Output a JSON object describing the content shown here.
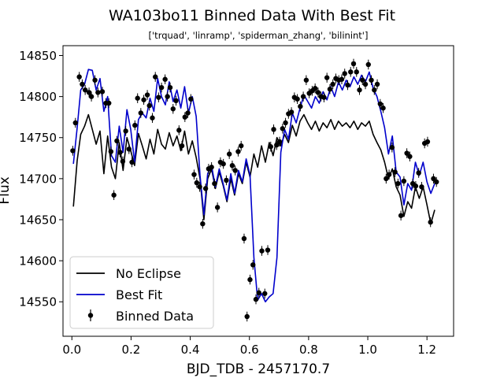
{
  "chart_data": {
    "type": "scatter",
    "title": "WA103bo11 Binned Data With Best Fit",
    "subtitle": "['trquad', 'linramp', 'spiderman_zhang', 'bilinint']",
    "xlabel": "BJD_TDB - 2457170.7",
    "ylabel": "Flux",
    "xlim": [
      -0.03,
      1.29
    ],
    "ylim": [
      14508,
      14862
    ],
    "xticks": [
      "0.0",
      "0.2",
      "0.4",
      "0.6",
      "0.8",
      "1.0",
      "1.2"
    ],
    "yticks": [
      "14550",
      "14600",
      "14650",
      "14700",
      "14750",
      "14800",
      "14850"
    ],
    "grid": false,
    "legend_position": "lower-left",
    "legend": [
      "No Eclipse",
      "Best Fit",
      "Binned Data"
    ],
    "colors": {
      "no_eclipse": "#000000",
      "best_fit": "#0000cc",
      "data": "#000000"
    },
    "series": [
      {
        "name": "No Eclipse",
        "kind": "line",
        "x": [
          0.005,
          0.018,
          0.03,
          0.043,
          0.056,
          0.069,
          0.082,
          0.095,
          0.108,
          0.121,
          0.134,
          0.147,
          0.16,
          0.173,
          0.186,
          0.199,
          0.212,
          0.225,
          0.238,
          0.251,
          0.264,
          0.277,
          0.29,
          0.303,
          0.316,
          0.329,
          0.342,
          0.355,
          0.368,
          0.381,
          0.394,
          0.407,
          0.42,
          0.433,
          0.446,
          0.459,
          0.472,
          0.485,
          0.498,
          0.511,
          0.524,
          0.537,
          0.55,
          0.563,
          0.576,
          0.589,
          0.602,
          0.615,
          0.628,
          0.641,
          0.654,
          0.667,
          0.68,
          0.693,
          0.706,
          0.719,
          0.732,
          0.745,
          0.758,
          0.771,
          0.784,
          0.797,
          0.81,
          0.823,
          0.836,
          0.849,
          0.862,
          0.875,
          0.888,
          0.901,
          0.914,
          0.927,
          0.94,
          0.953,
          0.966,
          0.979,
          0.992,
          1.005,
          1.018,
          1.031,
          1.044,
          1.057,
          1.07,
          1.083,
          1.096,
          1.109,
          1.122,
          1.135,
          1.148,
          1.161,
          1.174,
          1.187,
          1.2,
          1.213,
          1.226
        ],
        "y": [
          14666,
          14722,
          14754,
          14764,
          14778,
          14760,
          14742,
          14758,
          14706,
          14752,
          14714,
          14700,
          14744,
          14710,
          14750,
          14734,
          14716,
          14755,
          14740,
          14724,
          14748,
          14730,
          14760,
          14742,
          14736,
          14756,
          14740,
          14752,
          14734,
          14758,
          14730,
          14746,
          14726,
          14700,
          14650,
          14700,
          14712,
          14688,
          14708,
          14692,
          14672,
          14700,
          14680,
          14706,
          14694,
          14720,
          14702,
          14730,
          14714,
          14740,
          14720,
          14744,
          14728,
          14750,
          14740,
          14754,
          14744,
          14765,
          14752,
          14770,
          14778,
          14768,
          14760,
          14770,
          14758,
          14768,
          14762,
          14772,
          14760,
          14770,
          14764,
          14768,
          14762,
          14770,
          14760,
          14768,
          14764,
          14770,
          14754,
          14744,
          14735,
          14720,
          14700,
          14712,
          14690,
          14680,
          14654,
          14672,
          14664,
          14690,
          14676,
          14690,
          14668,
          14645,
          14662
        ]
      },
      {
        "name": "Best Fit",
        "kind": "line",
        "x": [
          0.005,
          0.018,
          0.03,
          0.043,
          0.056,
          0.069,
          0.082,
          0.095,
          0.108,
          0.121,
          0.134,
          0.147,
          0.16,
          0.173,
          0.186,
          0.199,
          0.212,
          0.225,
          0.238,
          0.251,
          0.264,
          0.277,
          0.29,
          0.303,
          0.316,
          0.329,
          0.342,
          0.355,
          0.368,
          0.381,
          0.394,
          0.407,
          0.42,
          0.433,
          0.446,
          0.459,
          0.472,
          0.485,
          0.498,
          0.511,
          0.524,
          0.537,
          0.55,
          0.563,
          0.576,
          0.589,
          0.602,
          0.615,
          0.628,
          0.641,
          0.654,
          0.667,
          0.68,
          0.693,
          0.706,
          0.719,
          0.732,
          0.745,
          0.758,
          0.771,
          0.784,
          0.797,
          0.81,
          0.823,
          0.836,
          0.849,
          0.862,
          0.875,
          0.888,
          0.901,
          0.914,
          0.927,
          0.94,
          0.953,
          0.966,
          0.979,
          0.992,
          1.005,
          1.018,
          1.031,
          1.044,
          1.057,
          1.07,
          1.083,
          1.096,
          1.109,
          1.122,
          1.135,
          1.148,
          1.161,
          1.174,
          1.187,
          1.2,
          1.213,
          1.226
        ],
        "y": [
          14718,
          14762,
          14808,
          14815,
          14833,
          14832,
          14808,
          14822,
          14782,
          14800,
          14728,
          14720,
          14764,
          14732,
          14784,
          14760,
          14720,
          14772,
          14780,
          14774,
          14798,
          14782,
          14822,
          14800,
          14790,
          14818,
          14794,
          14808,
          14786,
          14812,
          14780,
          14800,
          14776,
          14704,
          14656,
          14706,
          14716,
          14690,
          14712,
          14694,
          14674,
          14706,
          14682,
          14710,
          14696,
          14724,
          14704,
          14604,
          14552,
          14560,
          14550,
          14556,
          14560,
          14604,
          14732,
          14760,
          14748,
          14780,
          14768,
          14786,
          14802,
          14794,
          14786,
          14800,
          14792,
          14806,
          14796,
          14812,
          14800,
          14818,
          14808,
          14820,
          14812,
          14824,
          14815,
          14826,
          14818,
          14830,
          14810,
          14800,
          14782,
          14762,
          14730,
          14752,
          14708,
          14702,
          14668,
          14694,
          14686,
          14720,
          14704,
          14720,
          14696,
          14682,
          14694
        ]
      },
      {
        "name": "Binned Data",
        "kind": "errorbar",
        "x": [
          0.003,
          0.012,
          0.025,
          0.035,
          0.045,
          0.058,
          0.066,
          0.078,
          0.088,
          0.103,
          0.115,
          0.125,
          0.132,
          0.142,
          0.152,
          0.163,
          0.172,
          0.182,
          0.193,
          0.203,
          0.213,
          0.222,
          0.233,
          0.243,
          0.255,
          0.262,
          0.272,
          0.282,
          0.293,
          0.303,
          0.315,
          0.323,
          0.332,
          0.342,
          0.352,
          0.362,
          0.372,
          0.382,
          0.392,
          0.402,
          0.413,
          0.422,
          0.432,
          0.442,
          0.452,
          0.462,
          0.472,
          0.482,
          0.492,
          0.502,
          0.512,
          0.522,
          0.532,
          0.542,
          0.552,
          0.562,
          0.572,
          0.582,
          0.592,
          0.602,
          0.612,
          0.622,
          0.632,
          0.642,
          0.652,
          0.662,
          0.672,
          0.682,
          0.692,
          0.702,
          0.712,
          0.722,
          0.732,
          0.742,
          0.752,
          0.762,
          0.772,
          0.782,
          0.792,
          0.802,
          0.812,
          0.822,
          0.832,
          0.842,
          0.852,
          0.862,
          0.872,
          0.882,
          0.892,
          0.902,
          0.912,
          0.922,
          0.932,
          0.942,
          0.952,
          0.962,
          0.972,
          0.982,
          0.992,
          1.002,
          1.012,
          1.022,
          1.032,
          1.042,
          1.052,
          1.062,
          1.072,
          1.082,
          1.092,
          1.102,
          1.112,
          1.122,
          1.132,
          1.142,
          1.152,
          1.162,
          1.172,
          1.182,
          1.192,
          1.202,
          1.212,
          1.222,
          1.232
        ],
        "y": [
          14734,
          14768,
          14824,
          14815,
          14808,
          14805,
          14800,
          14820,
          14805,
          14806,
          14792,
          14792,
          14733,
          14680,
          14746,
          14732,
          14721,
          14758,
          14736,
          14720,
          14765,
          14798,
          14780,
          14796,
          14802,
          14789,
          14774,
          14824,
          14799,
          14811,
          14821,
          14800,
          14811,
          14785,
          14795,
          14759,
          14740,
          14775,
          14780,
          14797,
          14705,
          14695,
          14690,
          14645,
          14688,
          14712,
          14714,
          14694,
          14665,
          14720,
          14718,
          14698,
          14730,
          14716,
          14710,
          14733,
          14740,
          14627,
          14532,
          14577,
          14595,
          14553,
          14561,
          14612,
          14560,
          14613,
          14739,
          14760,
          14741,
          14745,
          14761,
          14768,
          14779,
          14781,
          14799,
          14797,
          14788,
          14800,
          14820,
          14804,
          14807,
          14810,
          14805,
          14800,
          14799,
          14823,
          14809,
          14815,
          14822,
          14820,
          14821,
          14828,
          14814,
          14830,
          14840,
          14830,
          14808,
          14820,
          14815,
          14839,
          14820,
          14808,
          14815,
          14791,
          14786,
          14700,
          14705,
          14738,
          14708,
          14694,
          14655,
          14697,
          14731,
          14727,
          14694,
          14691,
          14707,
          14690,
          14743,
          14745,
          14647,
          14700,
          14696
        ],
        "yerr": 6
      }
    ]
  }
}
